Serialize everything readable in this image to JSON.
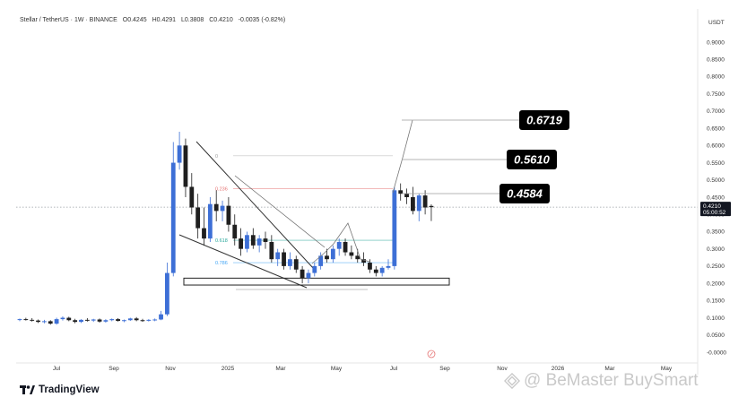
{
  "header": {
    "symbol": "Stellar / TetherUS · 1W · BINANCE",
    "open": "O0.4245",
    "high": "H0.4291",
    "low": "L0.3808",
    "close": "C0.4210",
    "change": "-0.0035 (-0.82%)"
  },
  "currency": "USDT",
  "logo_text": "TradingView",
  "watermark": "@ BeMaster BuySmart",
  "colors": {
    "up": "#3d6fd6",
    "down": "#1f1f1f",
    "accent_red": "#e57373"
  },
  "chart_data": {
    "type": "candlestick",
    "y_ticks": [
      "0.9000",
      "0.8500",
      "0.8000",
      "0.7500",
      "0.7000",
      "0.6500",
      "0.6000",
      "0.5500",
      "0.5000",
      "0.4500",
      "0.4000",
      "0.3500",
      "0.3000",
      "0.2500",
      "0.2000",
      "0.1500",
      "0.1000",
      "0.0500",
      "-0.0000"
    ],
    "ylim": [
      0,
      0.95
    ],
    "x_ticks": [
      "Jul",
      "Sep",
      "Nov",
      "2025",
      "Mar",
      "May",
      "Jul",
      "Sep",
      "Nov",
      "2026",
      "Mar",
      "May"
    ],
    "current_price": {
      "value": "0.4210",
      "countdown": "05:00:52"
    },
    "targets": [
      {
        "label": "0.6719",
        "value": 0.6719
      },
      {
        "label": "0.5610",
        "value": 0.561
      },
      {
        "label": "0.4584",
        "value": 0.4584
      }
    ],
    "fib_levels": [
      {
        "label": "0",
        "value": 0.57
      },
      {
        "label": "0.236",
        "value": 0.475
      },
      {
        "label": "0.618",
        "value": 0.325
      },
      {
        "label": "0.786",
        "value": 0.26
      }
    ],
    "support_zone": [
      0.195,
      0.215
    ],
    "candles": [
      [
        0.094,
        0.098,
        0.09,
        0.096
      ],
      [
        0.096,
        0.1,
        0.092,
        0.094
      ],
      [
        0.094,
        0.099,
        0.089,
        0.092
      ],
      [
        0.092,
        0.095,
        0.085,
        0.088
      ],
      [
        0.088,
        0.094,
        0.084,
        0.09
      ],
      [
        0.09,
        0.093,
        0.08,
        0.083
      ],
      [
        0.083,
        0.1,
        0.08,
        0.096
      ],
      [
        0.096,
        0.104,
        0.092,
        0.1
      ],
      [
        0.1,
        0.103,
        0.09,
        0.093
      ],
      [
        0.093,
        0.097,
        0.084,
        0.088
      ],
      [
        0.088,
        0.096,
        0.085,
        0.094
      ],
      [
        0.094,
        0.099,
        0.089,
        0.092
      ],
      [
        0.092,
        0.097,
        0.088,
        0.095
      ],
      [
        0.095,
        0.098,
        0.086,
        0.089
      ],
      [
        0.089,
        0.096,
        0.086,
        0.093
      ],
      [
        0.093,
        0.098,
        0.09,
        0.096
      ],
      [
        0.096,
        0.099,
        0.089,
        0.091
      ],
      [
        0.091,
        0.095,
        0.087,
        0.093
      ],
      [
        0.093,
        0.1,
        0.091,
        0.098
      ],
      [
        0.098,
        0.102,
        0.09,
        0.093
      ],
      [
        0.093,
        0.097,
        0.088,
        0.092
      ],
      [
        0.092,
        0.096,
        0.089,
        0.094
      ],
      [
        0.094,
        0.098,
        0.09,
        0.095
      ],
      [
        0.095,
        0.12,
        0.093,
        0.11
      ],
      [
        0.11,
        0.26,
        0.105,
        0.23
      ],
      [
        0.23,
        0.61,
        0.22,
        0.55
      ],
      [
        0.55,
        0.64,
        0.53,
        0.6
      ],
      [
        0.6,
        0.62,
        0.45,
        0.48
      ],
      [
        0.48,
        0.52,
        0.4,
        0.42
      ],
      [
        0.42,
        0.46,
        0.33,
        0.36
      ],
      [
        0.36,
        0.42,
        0.31,
        0.33
      ],
      [
        0.33,
        0.45,
        0.32,
        0.43
      ],
      [
        0.43,
        0.47,
        0.38,
        0.41
      ],
      [
        0.41,
        0.44,
        0.38,
        0.425
      ],
      [
        0.425,
        0.45,
        0.35,
        0.37
      ],
      [
        0.37,
        0.4,
        0.31,
        0.33
      ],
      [
        0.33,
        0.36,
        0.28,
        0.3
      ],
      [
        0.3,
        0.35,
        0.29,
        0.34
      ],
      [
        0.34,
        0.36,
        0.3,
        0.31
      ],
      [
        0.31,
        0.34,
        0.29,
        0.33
      ],
      [
        0.33,
        0.35,
        0.3,
        0.32
      ],
      [
        0.32,
        0.34,
        0.26,
        0.27
      ],
      [
        0.27,
        0.3,
        0.25,
        0.29
      ],
      [
        0.29,
        0.3,
        0.24,
        0.25
      ],
      [
        0.25,
        0.29,
        0.24,
        0.27
      ],
      [
        0.27,
        0.28,
        0.23,
        0.24
      ],
      [
        0.24,
        0.25,
        0.2,
        0.215
      ],
      [
        0.215,
        0.24,
        0.2,
        0.23
      ],
      [
        0.23,
        0.26,
        0.22,
        0.25
      ],
      [
        0.25,
        0.29,
        0.24,
        0.28
      ],
      [
        0.28,
        0.3,
        0.26,
        0.27
      ],
      [
        0.27,
        0.31,
        0.26,
        0.3
      ],
      [
        0.3,
        0.33,
        0.28,
        0.32
      ],
      [
        0.32,
        0.33,
        0.28,
        0.29
      ],
      [
        0.29,
        0.31,
        0.27,
        0.28
      ],
      [
        0.28,
        0.3,
        0.26,
        0.27
      ],
      [
        0.27,
        0.29,
        0.25,
        0.26
      ],
      [
        0.26,
        0.27,
        0.23,
        0.24
      ],
      [
        0.24,
        0.25,
        0.22,
        0.23
      ],
      [
        0.23,
        0.25,
        0.22,
        0.245
      ],
      [
        0.245,
        0.27,
        0.24,
        0.25
      ],
      [
        0.25,
        0.48,
        0.24,
        0.47
      ],
      [
        0.47,
        0.49,
        0.44,
        0.46
      ],
      [
        0.46,
        0.475,
        0.43,
        0.45
      ],
      [
        0.45,
        0.48,
        0.4,
        0.41
      ],
      [
        0.41,
        0.46,
        0.38,
        0.455
      ],
      [
        0.455,
        0.47,
        0.4,
        0.42
      ],
      [
        0.4245,
        0.4291,
        0.3808,
        0.421
      ]
    ]
  }
}
